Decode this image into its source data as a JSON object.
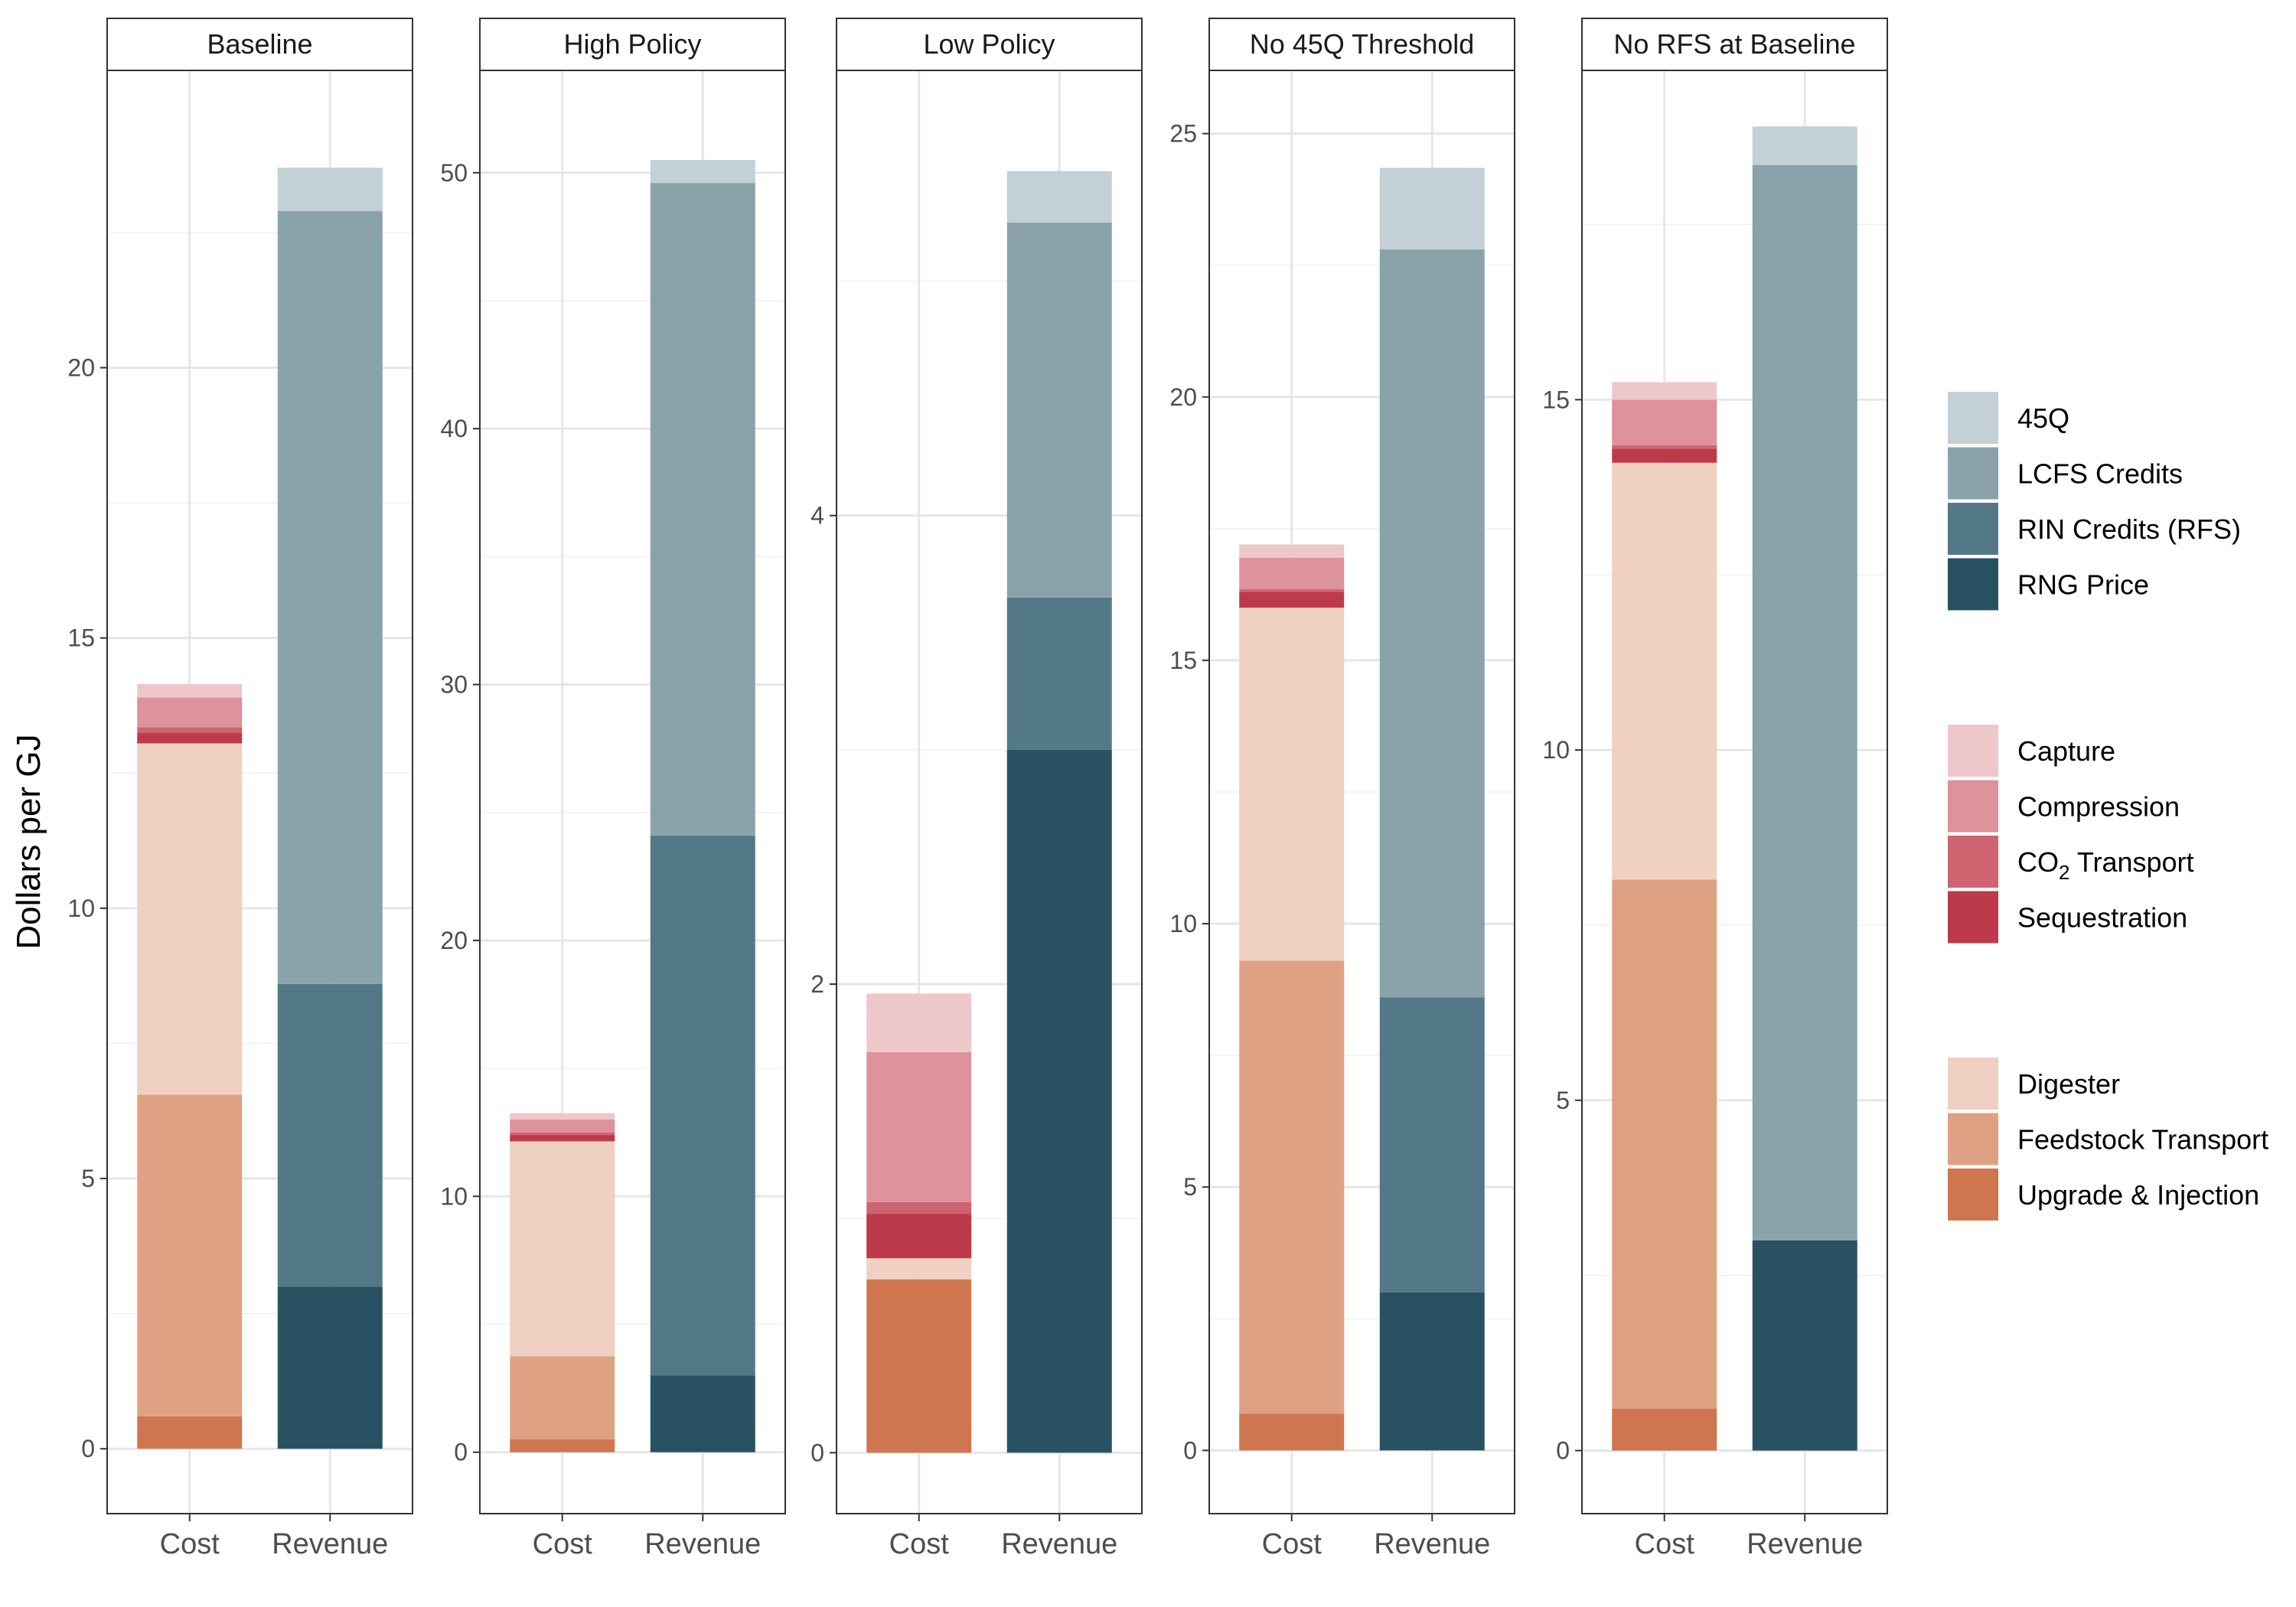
{
  "chart_data": {
    "type": "bar",
    "stacked": true,
    "ylabel": "Dollars per GJ",
    "xlabel": "",
    "categories": [
      "Cost",
      "Revenue"
    ],
    "colors": {
      "45Q": "#c3d0d6",
      "LCFS Credits": "#8aa3ab",
      "RIN Credits (RFS)": "#537988",
      "RNG Price": "#285262",
      "Capture": "#eec7cb",
      "Compression": "#dd929c",
      "CO2 Transport": "#cf6470",
      "Sequestration": "#bd3a4a",
      "Digester": "#f0d0c2",
      "Feedstock Transport": "#dfa184",
      "Upgrade & Injection": "#cf7650"
    },
    "legend": {
      "groups": [
        {
          "items": [
            {
              "key": "45Q",
              "label": "45Q"
            },
            {
              "key": "LCFS Credits",
              "label": "LCFS Credits"
            },
            {
              "key": "RIN Credits (RFS)",
              "label": "RIN Credits (RFS)"
            },
            {
              "key": "RNG Price",
              "label": "RNG Price"
            }
          ]
        },
        {
          "items": [
            {
              "key": "Capture",
              "label": "Capture"
            },
            {
              "key": "Compression",
              "label": "Compression"
            },
            {
              "key": "CO2 Transport",
              "label": "CO",
              "sub": "2",
              "tail": " Transport"
            },
            {
              "key": "Sequestration",
              "label": "Sequestration"
            }
          ]
        },
        {
          "items": [
            {
              "key": "Digester",
              "label": "Digester"
            },
            {
              "key": "Feedstock Transport",
              "label": "Feedstock Transport"
            },
            {
              "key": "Upgrade & Injection",
              "label": "Upgrade & Injection"
            }
          ]
        }
      ]
    },
    "panels": [
      {
        "title": "Baseline",
        "ylim": [
          -1.2,
          25.5
        ],
        "yticks": [
          0,
          5,
          10,
          15,
          20
        ],
        "bars": {
          "Cost": [
            {
              "key": "Upgrade & Injection",
              "value": 0.6
            },
            {
              "key": "Feedstock Transport",
              "value": 5.95
            },
            {
              "key": "Digester",
              "value": 6.5
            },
            {
              "key": "Sequestration",
              "value": 0.2
            },
            {
              "key": "CO2 Transport",
              "value": 0.1
            },
            {
              "key": "Compression",
              "value": 0.55
            },
            {
              "key": "Capture",
              "value": 0.25
            }
          ],
          "Revenue": [
            {
              "key": "RNG Price",
              "value": 3.0
            },
            {
              "key": "RIN Credits (RFS)",
              "value": 5.6
            },
            {
              "key": "LCFS Credits",
              "value": 14.3
            },
            {
              "key": "45Q",
              "value": 0.8
            }
          ]
        }
      },
      {
        "title": "High Policy",
        "ylim": [
          -2.4,
          54.0
        ],
        "yticks": [
          0,
          10,
          20,
          30,
          40,
          50
        ],
        "bars": {
          "Cost": [
            {
              "key": "Upgrade & Injection",
              "value": 0.5
            },
            {
              "key": "Feedstock Transport",
              "value": 3.25
            },
            {
              "key": "Digester",
              "value": 8.4
            },
            {
              "key": "Sequestration",
              "value": 0.25
            },
            {
              "key": "CO2 Transport",
              "value": 0.1
            },
            {
              "key": "Compression",
              "value": 0.5
            },
            {
              "key": "Capture",
              "value": 0.25
            }
          ],
          "Revenue": [
            {
              "key": "RNG Price",
              "value": 3.0
            },
            {
              "key": "RIN Credits (RFS)",
              "value": 21.1
            },
            {
              "key": "LCFS Credits",
              "value": 25.5
            },
            {
              "key": "45Q",
              "value": 0.9
            }
          ]
        }
      },
      {
        "title": "Low Policy",
        "ylim": [
          -0.26,
          5.9
        ],
        "yticks": [
          0,
          2,
          4
        ],
        "bars": {
          "Cost": [
            {
              "key": "Upgrade & Injection",
              "value": 0.74
            },
            {
              "key": "Digester",
              "value": 0.09
            },
            {
              "key": "Sequestration",
              "value": 0.19
            },
            {
              "key": "CO2 Transport",
              "value": 0.05
            },
            {
              "key": "Compression",
              "value": 0.64
            },
            {
              "key": "Capture",
              "value": 0.25
            }
          ],
          "Revenue": [
            {
              "key": "RNG Price",
              "value": 3.0
            },
            {
              "key": "RIN Credits (RFS)",
              "value": 0.65
            },
            {
              "key": "LCFS Credits",
              "value": 1.6
            },
            {
              "key": "45Q",
              "value": 0.22
            }
          ]
        }
      },
      {
        "title": "No 45Q Threshold",
        "ylim": [
          -1.2,
          26.2
        ],
        "yticks": [
          0,
          5,
          10,
          15,
          20,
          25
        ],
        "bars": {
          "Cost": [
            {
              "key": "Upgrade & Injection",
              "value": 0.7
            },
            {
              "key": "Feedstock Transport",
              "value": 8.6
            },
            {
              "key": "Digester",
              "value": 6.7
            },
            {
              "key": "Sequestration",
              "value": 0.3
            },
            {
              "key": "CO2 Transport",
              "value": 0.05
            },
            {
              "key": "Compression",
              "value": 0.6
            },
            {
              "key": "Capture",
              "value": 0.25
            }
          ],
          "Revenue": [
            {
              "key": "RNG Price",
              "value": 3.0
            },
            {
              "key": "RIN Credits (RFS)",
              "value": 5.6
            },
            {
              "key": "LCFS Credits",
              "value": 14.2
            },
            {
              "key": "45Q",
              "value": 1.55
            }
          ]
        }
      },
      {
        "title": "No RFS at Baseline",
        "ylim": [
          -0.9,
          19.7
        ],
        "yticks": [
          0,
          5,
          10,
          15
        ],
        "bars": {
          "Cost": [
            {
              "key": "Upgrade & Injection",
              "value": 0.6
            },
            {
              "key": "Feedstock Transport",
              "value": 7.55
            },
            {
              "key": "Digester",
              "value": 5.95
            },
            {
              "key": "Sequestration",
              "value": 0.2
            },
            {
              "key": "CO2 Transport",
              "value": 0.05
            },
            {
              "key": "Compression",
              "value": 0.65
            },
            {
              "key": "Capture",
              "value": 0.25
            }
          ],
          "Revenue": [
            {
              "key": "RNG Price",
              "value": 3.0
            },
            {
              "key": "LCFS Credits",
              "value": 15.35
            },
            {
              "key": "45Q",
              "value": 0.55
            }
          ]
        }
      }
    ]
  }
}
